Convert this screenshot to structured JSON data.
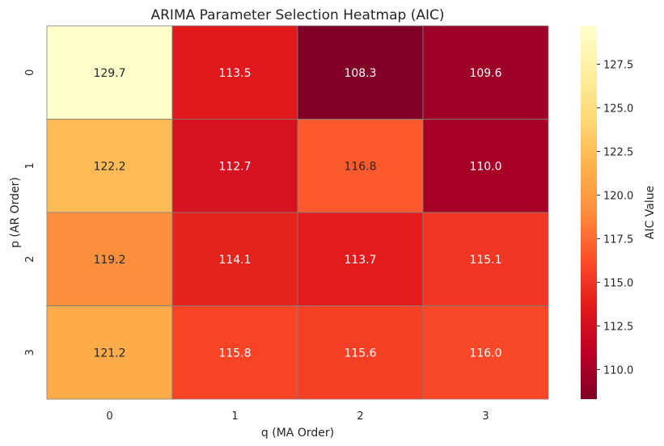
{
  "chart_data": {
    "type": "heatmap",
    "title": "ARIMA Parameter Selection Heatmap (AIC)",
    "xlabel": "q (MA Order)",
    "ylabel": "p (AR Order)",
    "x_categories": [
      "0",
      "1",
      "2",
      "3"
    ],
    "y_categories": [
      "0",
      "1",
      "2",
      "3"
    ],
    "values": [
      [
        129.7,
        113.5,
        108.3,
        109.6
      ],
      [
        122.2,
        112.7,
        116.8,
        110.0
      ],
      [
        119.2,
        114.1,
        113.7,
        115.1
      ],
      [
        121.2,
        115.8,
        115.6,
        116.0
      ]
    ],
    "value_labels": [
      [
        "129.7",
        "113.5",
        "108.3",
        "109.6"
      ],
      [
        "122.2",
        "112.7",
        "116.8",
        "110.0"
      ],
      [
        "119.2",
        "114.1",
        "113.7",
        "115.1"
      ],
      [
        "121.2",
        "115.8",
        "115.6",
        "116.0"
      ]
    ],
    "colorbar": {
      "label": "AIC Value",
      "range": [
        108.3,
        129.7
      ],
      "ticks": [
        "110.0",
        "112.5",
        "115.0",
        "117.5",
        "120.0",
        "122.5",
        "125.0",
        "127.5"
      ],
      "colormap": "YlOrRd_r",
      "colors": [
        "#800026",
        "#bd0026",
        "#e31a1c",
        "#fc4e2a",
        "#fd8d3c",
        "#feb24c",
        "#fed976",
        "#ffeda0",
        "#ffffcc"
      ]
    },
    "cell_border_color": "#808080",
    "dark_text_color": "#262626",
    "light_text_color": "#ffffff"
  }
}
